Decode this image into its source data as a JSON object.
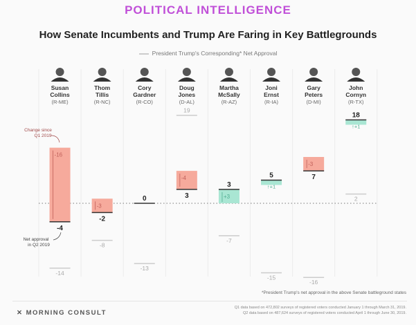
{
  "header": {
    "brand": "POLITICAL INTELLIGENCE"
  },
  "chart_data": {
    "type": "bar",
    "title": "How Senate Incumbents and Trump Are Faring in Key Battlegrounds",
    "legend": [
      "President Trump's Corresponding* Net Approval"
    ],
    "annotations": {
      "change": "Change since Q1 2019",
      "net": "Net approval in Q2 2019"
    },
    "categories": [
      {
        "first": "Susan",
        "last": "Collins",
        "party": "(R-ME)"
      },
      {
        "first": "Thom",
        "last": "Tillis",
        "party": "(R-NC)"
      },
      {
        "first": "Cory",
        "last": "Gardner",
        "party": "(R-CO)"
      },
      {
        "first": "Doug",
        "last": "Jones",
        "party": "(D-AL)"
      },
      {
        "first": "Martha",
        "last": "McSally",
        "party": "(R-AZ)"
      },
      {
        "first": "Joni",
        "last": "Ernst",
        "party": "(R-IA)"
      },
      {
        "first": "Gary",
        "last": "Peters",
        "party": "(D-MI)"
      },
      {
        "first": "John",
        "last": "Cornyn",
        "party": "(R-TX)"
      }
    ],
    "series": [
      {
        "name": "Net approval Q2 2019",
        "values": [
          -4,
          -2,
          0,
          3,
          3,
          5,
          7,
          18
        ]
      },
      {
        "name": "Change since Q1 2019",
        "values": [
          -16,
          -3,
          0,
          -4,
          3,
          1,
          -3,
          1
        ],
        "labels": [
          "-16",
          "-3",
          "",
          "-4",
          "+3",
          "+1",
          "-3",
          "+1"
        ]
      },
      {
        "name": "President Trump's net approval",
        "values": [
          -14,
          -8,
          -13,
          19,
          -7,
          -15,
          -16,
          2
        ]
      }
    ],
    "colors": {
      "down": "#f6aa9c",
      "up": "#a9e6d3",
      "downText": "#c0605a",
      "upText": "#4fae91",
      "trump": "#cccccc"
    }
  },
  "footer": {
    "note": "*President Trump's net approval in the above Senate battleground states",
    "logo": "MORNING CONSULT",
    "src1": "Q1 data based on 472,802 surveys of registered voters conducted January 1 through March 31, 2019.",
    "src2": "Q2 data based on 487,624 surveys of registered voters conducted April 1 through June 30, 2019."
  }
}
